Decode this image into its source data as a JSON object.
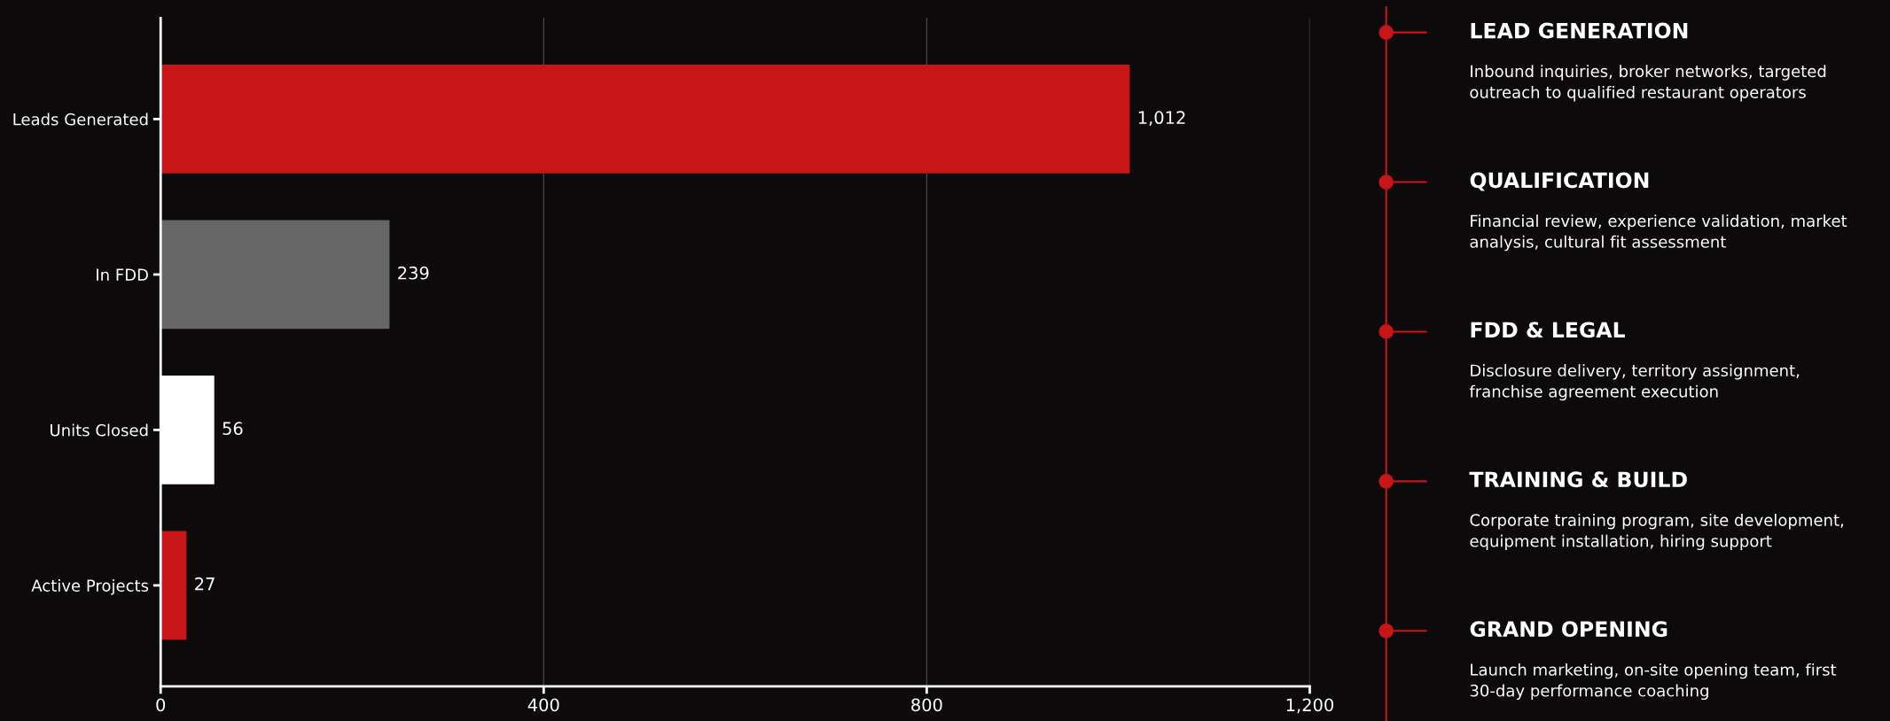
{
  "chart_data": [
    {
      "type": "bar",
      "orientation": "horizontal",
      "categories": [
        "Leads Generated",
        "In FDD",
        "Units Closed",
        "Active Projects"
      ],
      "values": [
        1012,
        239,
        56,
        27
      ],
      "colors": [
        "#c81517",
        "#666666",
        "#ffffff",
        "#c81517"
      ],
      "value_labels": [
        "1,012",
        "239",
        "56",
        "27"
      ],
      "xlim": [
        0,
        1200
      ],
      "xticks": [
        0,
        400,
        800,
        {
          "value": 1200,
          "label": "1,200"
        }
      ],
      "grid": "x",
      "legend": false
    },
    {
      "type": "other",
      "color": "#c81517",
      "categories": [
        "LEAD GENERATION",
        "QUALIFICATION",
        "FDD & LEGAL",
        "TRAINING & BUILD",
        "GRAND OPENING"
      ],
      "annotations": [
        "Inbound inquiries, broker networks, targeted\noutreach to qualified restaurant operators",
        "Financial review, experience validation, market\nanalysis, cultural fit assessment",
        "Disclosure delivery, territory assignment,\nfranchise agreement execution",
        "Corporate training program, site development,\nequipment installation, hiring support",
        "Launch marketing, on-site opening team, first\n30-day performance coaching"
      ]
    }
  ]
}
